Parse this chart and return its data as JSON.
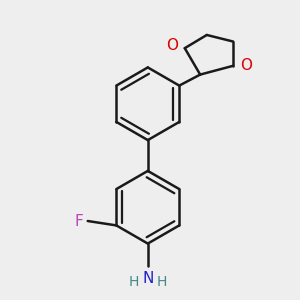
{
  "bg_color": "#eeeeee",
  "bond_color": "#1a1a1a",
  "bond_width": 1.8,
  "F_color": "#bb44bb",
  "N_color": "#2222cc",
  "O_color": "#dd0000",
  "font_size": 11,
  "fig_width": 3.0,
  "fig_height": 3.0,
  "dpi": 100,
  "xlim": [
    -1.2,
    1.2
  ],
  "ylim": [
    -1.35,
    1.35
  ]
}
